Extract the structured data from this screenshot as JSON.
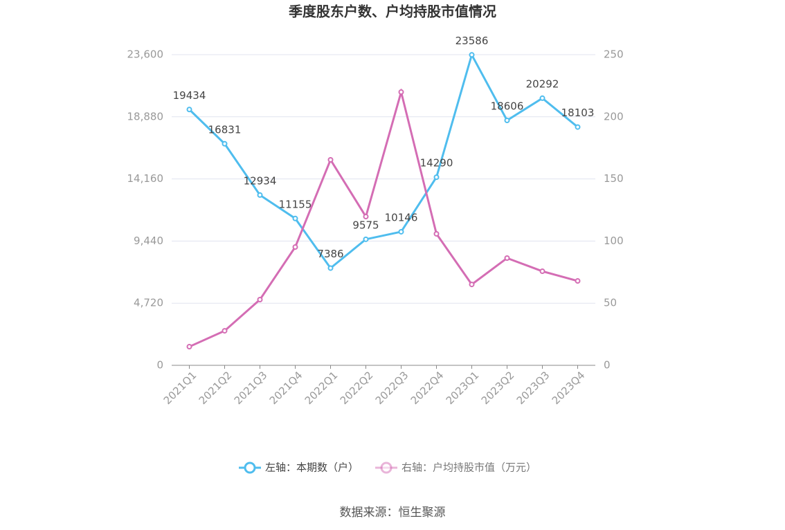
{
  "chart_data": {
    "type": "line",
    "title": "季度股东户数、户均持股市值情况",
    "categories": [
      "2021Q1",
      "2021Q2",
      "2021Q3",
      "2021Q4",
      "2022Q1",
      "2022Q2",
      "2022Q3",
      "2022Q4",
      "2023Q1",
      "2023Q2",
      "2023Q3",
      "2023Q4"
    ],
    "series": [
      {
        "name": "左轴：本期数（户）",
        "color": "#4fbdee",
        "values": [
          19434,
          16831,
          12934,
          11155,
          7386,
          9575,
          10146,
          14290,
          23586,
          18606,
          20292,
          18103
        ],
        "data_labels": true
      },
      {
        "name": "右轴：户均持股市值（万元）",
        "color": "#d46db4",
        "axis": "y2",
        "values": [
          15.0,
          27.8,
          52.9,
          95.2,
          165.4,
          119.7,
          219.9,
          105.8,
          65.1,
          86.3,
          75.7,
          67.9
        ],
        "data_labels": false
      }
    ],
    "ylim": [
      0,
      23600
    ],
    "yticks": [
      0,
      {
        "value": 4720,
        "label": "4,720"
      },
      {
        "value": 9440,
        "label": "9,440"
      },
      {
        "value": 14160,
        "label": "14,160"
      },
      {
        "value": 18880,
        "label": "18,880"
      },
      {
        "value": 23600,
        "label": "23,600"
      }
    ],
    "y2lim": [
      0,
      250
    ],
    "y2ticks": [
      0,
      50,
      100,
      150,
      200,
      250
    ],
    "grid": true,
    "legend": "bottom",
    "source": "数据来源：恒生聚源"
  }
}
